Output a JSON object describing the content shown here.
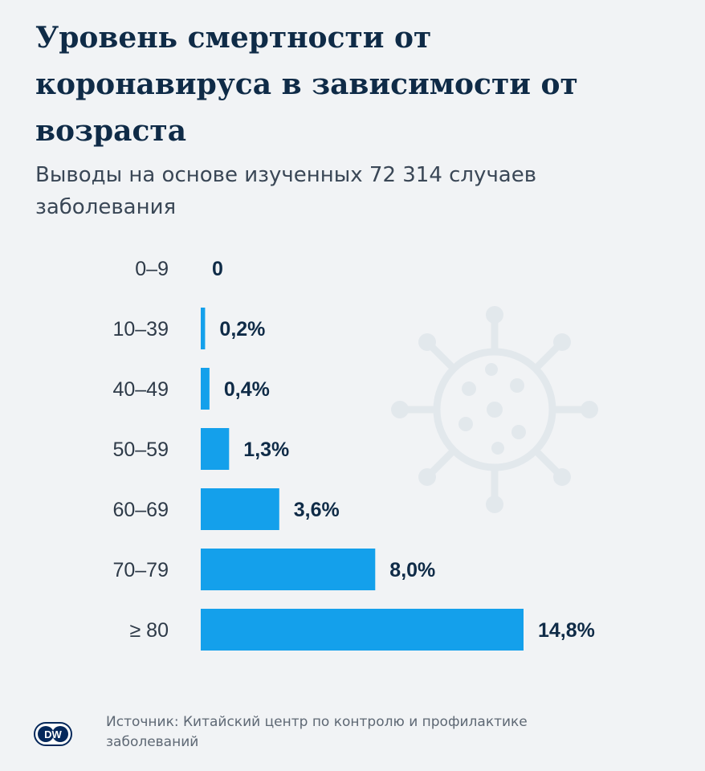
{
  "header": {
    "title": "Уровень смертности от коронавируса в зависимости от возраста",
    "subtitle": "Выводы на основе изученных 72 314 случаев заболевания"
  },
  "chart_data": {
    "type": "bar",
    "orientation": "horizontal",
    "categories": [
      "0–9",
      "10–39",
      "40–49",
      "50–59",
      "60–69",
      "70–79",
      "≥ 80"
    ],
    "values": [
      0,
      0.2,
      0.4,
      1.3,
      3.6,
      8.0,
      14.8
    ],
    "value_labels": [
      "0",
      "0,2%",
      "0,4%",
      "1,3%",
      "3,6%",
      "8,0%",
      "14,8%"
    ],
    "title": "Уровень смертности от коронавируса в зависимости от возраста",
    "subtitle": "Выводы на основе изученных 72 314 случаев заболевания",
    "xlabel": "",
    "ylabel": "",
    "xlim": [
      0,
      14.8
    ],
    "grid": false,
    "legend": "none",
    "bar_color": "#14a0eb"
  },
  "footer": {
    "logo_text": "DW",
    "source": "Источник: Китайский центр по контролю и профилактике заболеваний"
  },
  "colors": {
    "background": "#f1f3f5",
    "title": "#0f2b47",
    "bar": "#14a0eb",
    "logo": "#05285b"
  },
  "icons": {
    "background": "virus-icon",
    "logo": "dw-logo-icon"
  }
}
